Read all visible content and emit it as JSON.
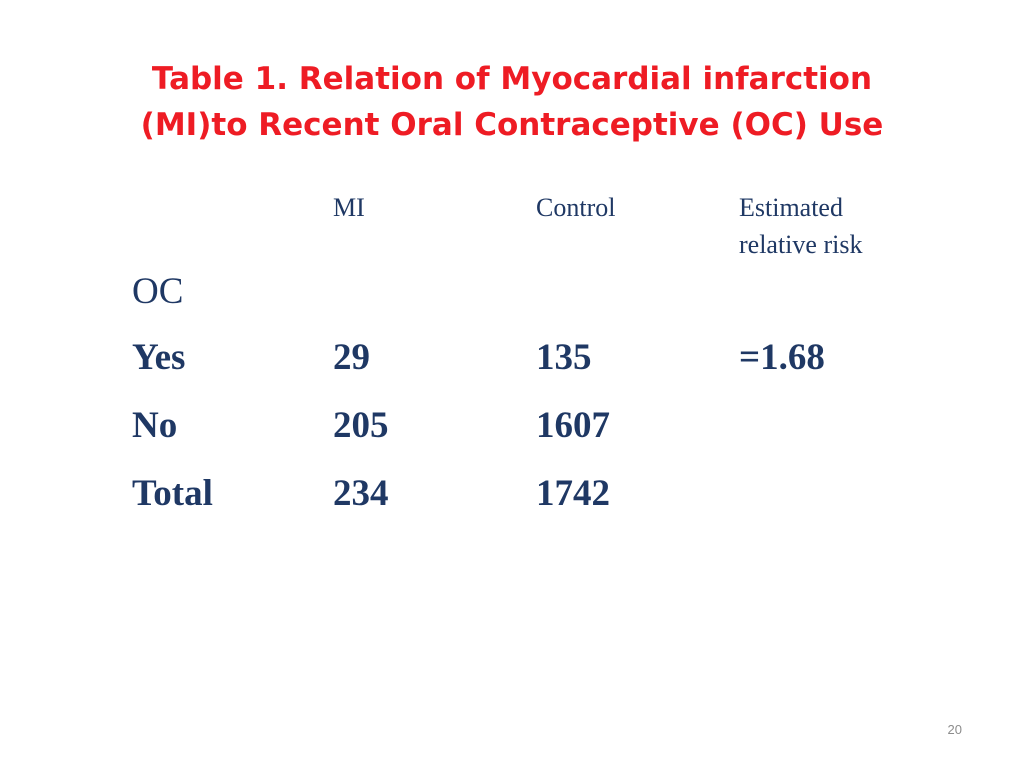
{
  "title": {
    "line1": "Table 1. Relation of Myocardial infarction",
    "line2": "(MI)to Recent Oral Contraceptive (OC) Use"
  },
  "table": {
    "headers": {
      "mi": "MI",
      "control": "Control",
      "rr_line1": "Estimated",
      "rr_line2": "relative risk"
    },
    "group_label": "OC",
    "rows": [
      {
        "label": "Yes",
        "mi": "29",
        "control": "135",
        "rr": "=1.68"
      },
      {
        "label": "No",
        "mi": "205",
        "control": "1607",
        "rr": ""
      },
      {
        "label": "Total",
        "mi": "234",
        "control": "1742",
        "rr": ""
      }
    ]
  },
  "page_number": "20",
  "colors": {
    "title": "#ee1c24",
    "body_text": "#1f3864",
    "page_number": "#8c8c8c"
  }
}
